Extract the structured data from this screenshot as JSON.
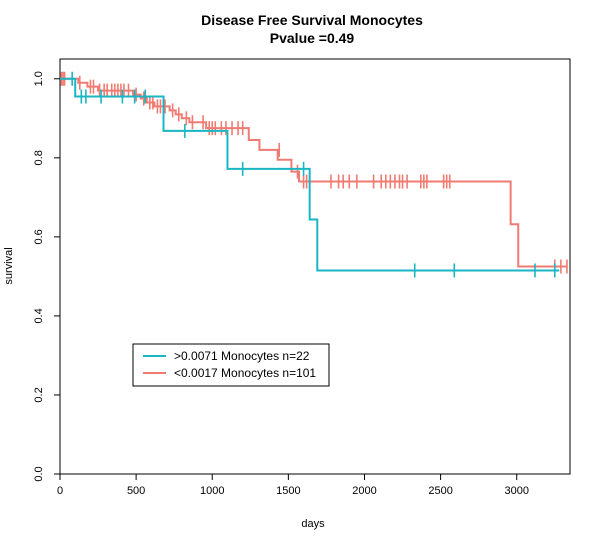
{
  "chart_data": {
    "type": "line",
    "title": "Disease Free Survival Monocytes",
    "subtitle": "Pvalue =0.49",
    "xlabel": "days",
    "ylabel": "survival",
    "xlim": [
      0,
      3350
    ],
    "ylim": [
      0,
      1.05
    ],
    "x_ticks": [
      0,
      500,
      1000,
      1500,
      2000,
      2500,
      3000
    ],
    "y_ticks": [
      "0.0",
      "0.2",
      "0.4",
      "0.6",
      "0.8",
      "1.0"
    ],
    "grid": false,
    "legend_position": "bottom-left",
    "series": [
      {
        "name": ">0.0071 Monocytes n=22",
        "color": "#1ab6c4",
        "steps": [
          [
            0,
            1.0
          ],
          [
            100,
            0.955
          ],
          [
            680,
            0.868
          ],
          [
            1100,
            0.772
          ],
          [
            1640,
            0.644
          ],
          [
            1690,
            0.515
          ],
          [
            3280,
            0.515
          ]
        ],
        "censors": [
          [
            80,
            1.0
          ],
          [
            140,
            0.955
          ],
          [
            170,
            0.955
          ],
          [
            270,
            0.955
          ],
          [
            410,
            0.955
          ],
          [
            490,
            0.955
          ],
          [
            560,
            0.955
          ],
          [
            820,
            0.868
          ],
          [
            1200,
            0.772
          ],
          [
            1600,
            0.772
          ],
          [
            2330,
            0.515
          ],
          [
            2590,
            0.515
          ],
          [
            3120,
            0.515
          ],
          [
            3250,
            0.515
          ]
        ]
      },
      {
        "name": "<0.0017 Monocytes n=101",
        "color": "#f07b72",
        "steps": [
          [
            0,
            1.0
          ],
          [
            120,
            0.99
          ],
          [
            180,
            0.98
          ],
          [
            250,
            0.97
          ],
          [
            480,
            0.96
          ],
          [
            530,
            0.95
          ],
          [
            570,
            0.94
          ],
          [
            620,
            0.93
          ],
          [
            720,
            0.92
          ],
          [
            760,
            0.91
          ],
          [
            800,
            0.9
          ],
          [
            850,
            0.89
          ],
          [
            960,
            0.875
          ],
          [
            1240,
            0.845
          ],
          [
            1310,
            0.82
          ],
          [
            1430,
            0.795
          ],
          [
            1520,
            0.765
          ],
          [
            1570,
            0.74
          ],
          [
            2960,
            0.632
          ],
          [
            3010,
            0.525
          ],
          [
            3330,
            0.525
          ]
        ],
        "censors": [
          [
            10,
            1.0
          ],
          [
            20,
            1.0
          ],
          [
            30,
            1.0
          ],
          [
            130,
            0.99
          ],
          [
            200,
            0.98
          ],
          [
            220,
            0.98
          ],
          [
            260,
            0.97
          ],
          [
            290,
            0.97
          ],
          [
            310,
            0.97
          ],
          [
            340,
            0.97
          ],
          [
            360,
            0.97
          ],
          [
            380,
            0.97
          ],
          [
            400,
            0.97
          ],
          [
            420,
            0.97
          ],
          [
            450,
            0.97
          ],
          [
            500,
            0.96
          ],
          [
            550,
            0.95
          ],
          [
            590,
            0.94
          ],
          [
            610,
            0.94
          ],
          [
            640,
            0.93
          ],
          [
            660,
            0.93
          ],
          [
            690,
            0.93
          ],
          [
            740,
            0.92
          ],
          [
            780,
            0.91
          ],
          [
            830,
            0.9
          ],
          [
            870,
            0.89
          ],
          [
            940,
            0.89
          ],
          [
            980,
            0.875
          ],
          [
            1000,
            0.875
          ],
          [
            1020,
            0.875
          ],
          [
            1060,
            0.875
          ],
          [
            1090,
            0.875
          ],
          [
            1130,
            0.875
          ],
          [
            1170,
            0.875
          ],
          [
            1200,
            0.875
          ],
          [
            1440,
            0.82
          ],
          [
            1560,
            0.765
          ],
          [
            1600,
            0.74
          ],
          [
            1620,
            0.74
          ],
          [
            1780,
            0.74
          ],
          [
            1830,
            0.74
          ],
          [
            1860,
            0.74
          ],
          [
            1900,
            0.74
          ],
          [
            1950,
            0.74
          ],
          [
            2060,
            0.74
          ],
          [
            2110,
            0.74
          ],
          [
            2140,
            0.74
          ],
          [
            2170,
            0.74
          ],
          [
            2200,
            0.74
          ],
          [
            2230,
            0.74
          ],
          [
            2250,
            0.74
          ],
          [
            2280,
            0.74
          ],
          [
            2370,
            0.74
          ],
          [
            2390,
            0.74
          ],
          [
            2410,
            0.74
          ],
          [
            2520,
            0.74
          ],
          [
            2540,
            0.74
          ],
          [
            2560,
            0.74
          ],
          [
            3250,
            0.525
          ],
          [
            3290,
            0.525
          ],
          [
            3330,
            0.525
          ]
        ]
      }
    ]
  }
}
